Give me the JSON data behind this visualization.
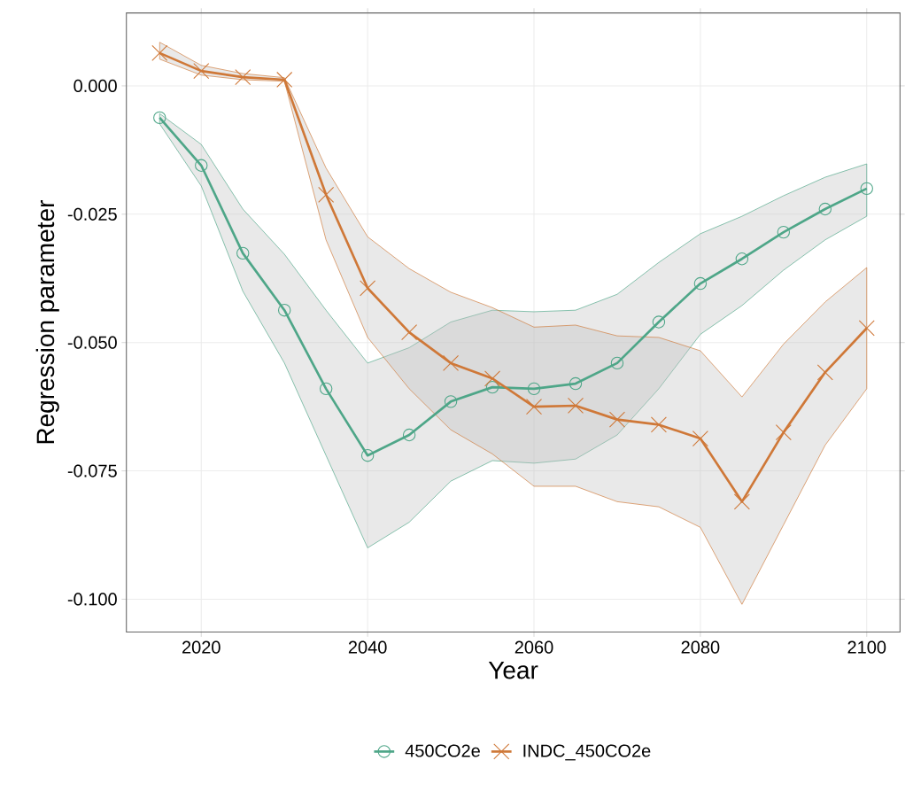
{
  "chart_data": {
    "type": "line",
    "xlabel": "Year",
    "ylabel": "Regression parameter",
    "x": [
      2015,
      2020,
      2025,
      2030,
      2035,
      2040,
      2045,
      2050,
      2055,
      2060,
      2065,
      2070,
      2075,
      2080,
      2085,
      2090,
      2095,
      2100
    ],
    "series": [
      {
        "name": "450CO2e",
        "color": "#4ea688",
        "marker": "circle",
        "values": [
          -0.0062,
          -0.0155,
          -0.0326,
          -0.0437,
          -0.059,
          -0.072,
          -0.068,
          -0.0615,
          -0.0587,
          -0.059,
          -0.058,
          -0.054,
          -0.046,
          -0.0385,
          -0.0337,
          -0.0285,
          -0.024,
          -0.02
        ],
        "upper": [
          -0.0054,
          -0.0114,
          -0.024,
          -0.0328,
          -0.0437,
          -0.054,
          -0.051,
          -0.046,
          -0.0437,
          -0.044,
          -0.0437,
          -0.0406,
          -0.0344,
          -0.0288,
          -0.0254,
          -0.0214,
          -0.0178,
          -0.0152
        ],
        "lower": [
          -0.0074,
          -0.0195,
          -0.04,
          -0.054,
          -0.072,
          -0.09,
          -0.085,
          -0.077,
          -0.073,
          -0.0735,
          -0.0727,
          -0.068,
          -0.059,
          -0.0484,
          -0.0428,
          -0.0359,
          -0.03,
          -0.0254
        ]
      },
      {
        "name": "INDC_450CO2e",
        "color": "#cf7838",
        "marker": "cross",
        "values": [
          0.0064,
          0.0029,
          0.0017,
          0.0012,
          -0.0212,
          -0.0394,
          -0.048,
          -0.054,
          -0.057,
          -0.0625,
          -0.0623,
          -0.065,
          -0.066,
          -0.0687,
          -0.081,
          -0.0675,
          -0.0558,
          -0.0472
        ],
        "upper": [
          0.0085,
          0.004,
          0.0024,
          0.0016,
          -0.016,
          -0.0294,
          -0.0356,
          -0.0402,
          -0.0432,
          -0.047,
          -0.0466,
          -0.0487,
          -0.049,
          -0.0516,
          -0.0606,
          -0.0503,
          -0.0421,
          -0.0354
        ],
        "lower": [
          0.0052,
          0.0021,
          0.0012,
          0.0009,
          -0.03,
          -0.049,
          -0.059,
          -0.067,
          -0.0717,
          -0.078,
          -0.078,
          -0.081,
          -0.082,
          -0.086,
          -0.101,
          -0.0855,
          -0.07,
          -0.059
        ]
      }
    ],
    "xlim": [
      2011,
      2104
    ],
    "ylim": [
      -0.1064,
      0.0142
    ],
    "xticks": [
      2020,
      2040,
      2060,
      2080,
      2100
    ],
    "yticks": [
      {
        "value": 0,
        "label": "0.000"
      },
      {
        "value": -0.025,
        "label": "-0.025"
      },
      {
        "value": -0.05,
        "label": "-0.050"
      },
      {
        "value": -0.075,
        "label": "-0.075"
      },
      {
        "value": -0.1,
        "label": "-0.100"
      }
    ],
    "grid": true,
    "legend": "bottom"
  }
}
